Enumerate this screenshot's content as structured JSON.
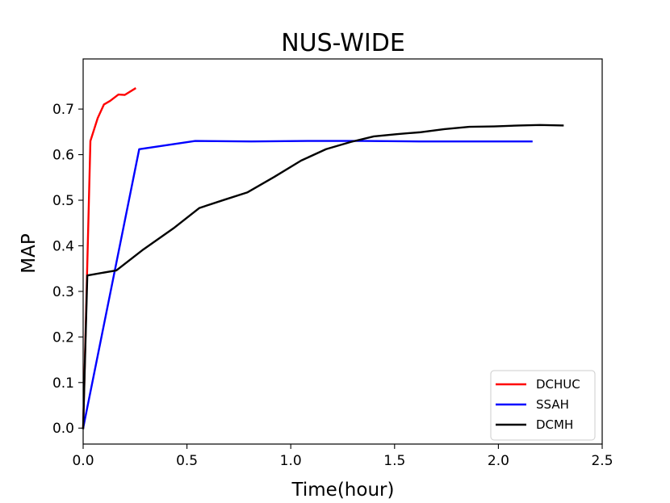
{
  "chart_data": {
    "type": "line",
    "title": "NUS-WIDE",
    "xlabel": "Time(hour)",
    "ylabel": "MAP",
    "xlim": [
      0.0,
      2.5
    ],
    "ylim": [
      -0.035,
      0.81
    ],
    "xticks": [
      0.0,
      0.5,
      1.0,
      1.5,
      2.0,
      2.5
    ],
    "xtick_labels": [
      "0.0",
      "0.5",
      "1.0",
      "1.5",
      "2.0",
      "2.5"
    ],
    "yticks": [
      0.0,
      0.1,
      0.2,
      0.3,
      0.4,
      0.5,
      0.6,
      0.7
    ],
    "ytick_labels": [
      "0.0",
      "0.1",
      "0.2",
      "0.3",
      "0.4",
      "0.5",
      "0.6",
      "0.7"
    ],
    "grid": false,
    "legend_position": "lower-right",
    "series": [
      {
        "name": "DCHUC",
        "color": "#ff0000",
        "x": [
          0.0,
          0.035,
          0.07,
          0.1,
          0.13,
          0.17,
          0.2,
          0.25
        ],
        "y": [
          0.0,
          0.63,
          0.68,
          0.71,
          0.718,
          0.732,
          0.731,
          0.745
        ]
      },
      {
        "name": "SSAH",
        "color": "#0000ff",
        "x": [
          0.0,
          0.27,
          0.54,
          0.81,
          1.08,
          1.35,
          1.62,
          1.89,
          2.16
        ],
        "y": [
          0.0,
          0.612,
          0.63,
          0.629,
          0.63,
          0.63,
          0.629,
          0.629,
          0.629
        ]
      },
      {
        "name": "DCMH",
        "color": "#000000",
        "x": [
          0.0,
          0.02,
          0.16,
          0.29,
          0.44,
          0.56,
          0.68,
          0.79,
          0.92,
          1.05,
          1.17,
          1.29,
          1.4,
          1.51,
          1.62,
          1.74,
          1.86,
          1.98,
          2.1,
          2.2,
          2.31
        ],
        "y": [
          0.0,
          0.335,
          0.346,
          0.392,
          0.44,
          0.483,
          0.501,
          0.517,
          0.551,
          0.587,
          0.612,
          0.628,
          0.64,
          0.645,
          0.649,
          0.656,
          0.661,
          0.662,
          0.664,
          0.665,
          0.664
        ]
      }
    ]
  }
}
